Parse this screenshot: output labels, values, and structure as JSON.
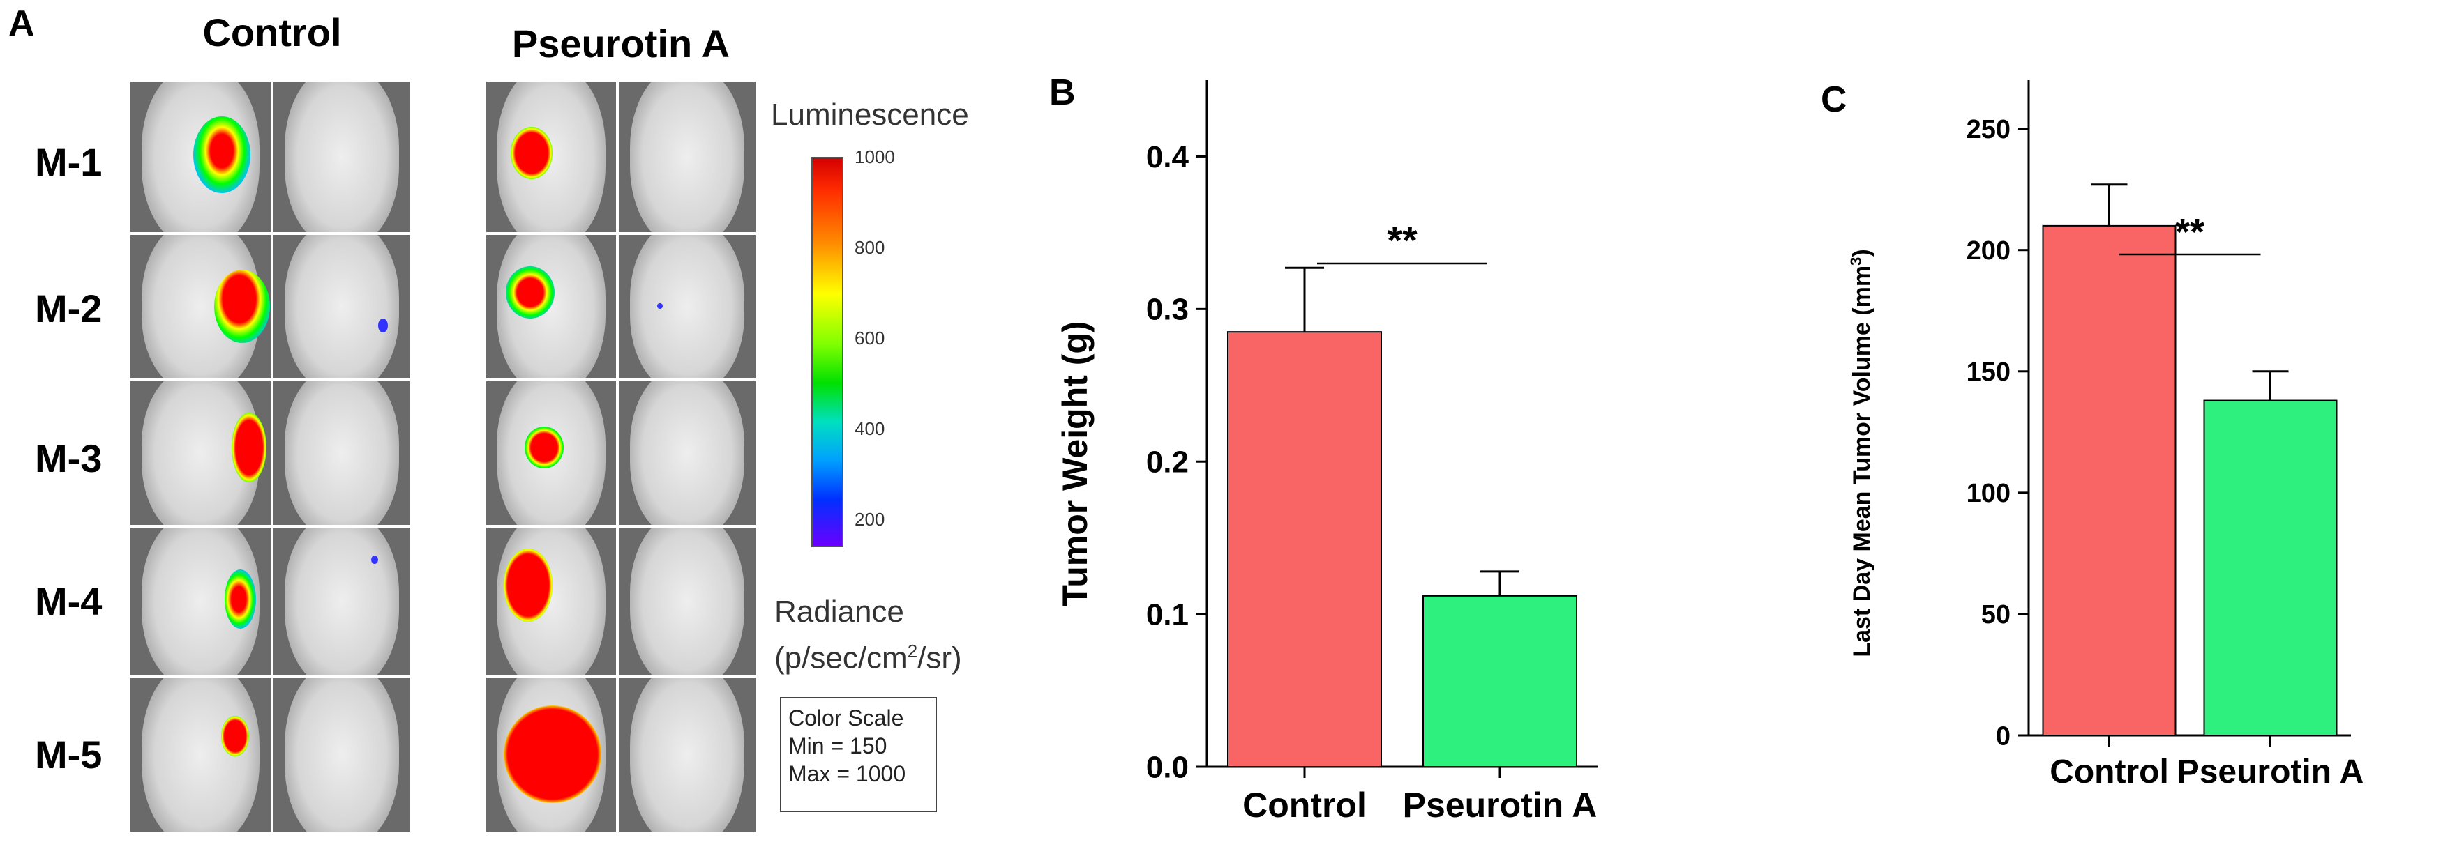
{
  "panelA": {
    "letter": "A",
    "groups": [
      "Control",
      "Pseurotin A"
    ],
    "rows": [
      "M-1",
      "M-2",
      "M-3",
      "M-4",
      "M-5"
    ],
    "colorbar": {
      "title": "Luminescence",
      "ticks": [
        "1000",
        "800",
        "600",
        "400",
        "200"
      ],
      "radiance_line1": "Radiance",
      "radiance_line2_pre": "(p/sec/cm",
      "radiance_sup": "2",
      "radiance_line2_post": "/sr)"
    },
    "scale_box": {
      "line1": "Color Scale",
      "line2": "Min = 150",
      "line3": "Max = 1000"
    }
  },
  "chart_data": [
    {
      "panel": "B",
      "type": "bar",
      "categories": [
        "Control",
        "Pseurotin A"
      ],
      "values": [
        0.285,
        0.112
      ],
      "errors": [
        0.042,
        0.016
      ],
      "colors": [
        "#f96565",
        "#2ef07f"
      ],
      "ylabel": "Tumor Weight (g)",
      "ylim": [
        0,
        0.45
      ],
      "yticks": [
        "0.0",
        "0.1",
        "0.2",
        "0.3",
        "0.4"
      ],
      "significance": "**"
    },
    {
      "panel": "C",
      "type": "bar",
      "categories": [
        "Control",
        "Pseurotin A"
      ],
      "values": [
        210,
        138
      ],
      "errors": [
        17,
        12
      ],
      "colors": [
        "#f96565",
        "#2ef07f"
      ],
      "ylabel_pre": "Last Day Mean Tumor Volume (mm",
      "ylabel_sup": "3",
      "ylabel_post": ")",
      "ylim": [
        0,
        270
      ],
      "yticks": [
        "0",
        "50",
        "100",
        "150",
        "200",
        "250"
      ],
      "significance": "**"
    }
  ]
}
